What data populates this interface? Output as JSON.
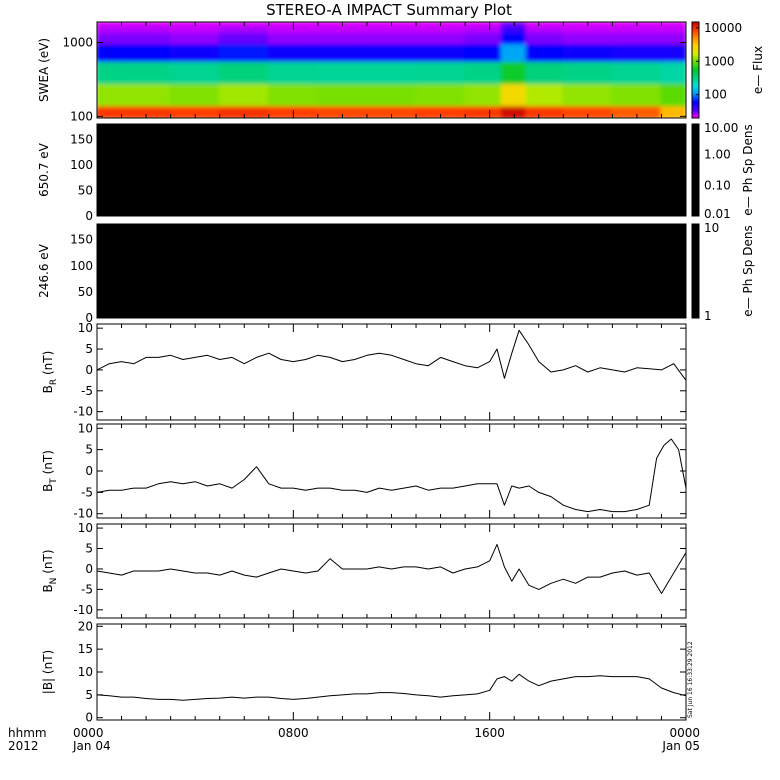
{
  "title": "STEREO-A IMPACT Summary Plot",
  "time_axis": {
    "row1_label": "hhmm",
    "row2_label": "2012",
    "ticks": [
      {
        "hour": 0,
        "top": "0000",
        "bottom": "Jan 04"
      },
      {
        "hour": 8,
        "top": "0800",
        "bottom": ""
      },
      {
        "hour": 16,
        "top": "1600",
        "bottom": ""
      },
      {
        "hour": 24,
        "top": "0000",
        "bottom": "Jan 05"
      }
    ],
    "range_hours": [
      0,
      24
    ]
  },
  "timestamp_label": "Sat Jun 16 16:33:29 2012",
  "colors": {
    "background": "#ffffff",
    "frame": "#000000",
    "trace": "#000000",
    "empty_panel": "#000000",
    "spectrogram_scale": [
      "#ff00ff",
      "#4b00ff",
      "#0000ff",
      "#0096ff",
      "#00dcdc",
      "#00d27d",
      "#00c832",
      "#64dc00",
      "#d2f000",
      "#ffd200",
      "#ff8c00",
      "#ff3c00",
      "#c80000"
    ]
  },
  "chart_data": [
    {
      "type": "heatmap",
      "name": "swea",
      "ylabel": "SWEA (eV)",
      "yscale": "log",
      "ylim": [
        95,
        1900
      ],
      "yticks": [
        100,
        1000
      ],
      "yticklabels": [
        "100",
        "1000"
      ],
      "colorbar": {
        "label": "e— Flux",
        "scale": "log",
        "range": [
          20,
          15000
        ],
        "ticks": [
          100,
          1000,
          10000
        ],
        "ticklabels": [
          "100",
          "1000",
          "10000"
        ]
      },
      "energy_bins": [
        100,
        200,
        400,
        800,
        1200,
        1600,
        1900
      ],
      "time_hours": [
        0,
        2,
        4,
        6,
        8,
        10,
        12,
        14,
        16,
        17,
        18,
        20,
        22,
        24
      ],
      "flux": [
        [
          9000,
          1200,
          300,
          60,
          30,
          25,
          22
        ],
        [
          9000,
          1200,
          300,
          60,
          30,
          25,
          22
        ],
        [
          8500,
          1100,
          280,
          55,
          28,
          24,
          22
        ],
        [
          9500,
          1300,
          320,
          65,
          32,
          26,
          22
        ],
        [
          8500,
          1100,
          280,
          55,
          28,
          24,
          22
        ],
        [
          8000,
          1050,
          270,
          55,
          28,
          24,
          22
        ],
        [
          8000,
          1050,
          270,
          55,
          28,
          24,
          22
        ],
        [
          8500,
          1100,
          280,
          55,
          28,
          24,
          22
        ],
        [
          9000,
          1200,
          300,
          60,
          30,
          25,
          22
        ],
        [
          14000,
          2500,
          600,
          120,
          60,
          40,
          30
        ],
        [
          9000,
          1400,
          320,
          60,
          30,
          25,
          22
        ],
        [
          8000,
          1200,
          300,
          55,
          28,
          24,
          22
        ],
        [
          7000,
          1100,
          280,
          50,
          28,
          24,
          22
        ],
        [
          3500,
          900,
          250,
          50,
          28,
          24,
          22
        ]
      ]
    },
    {
      "type": "heatmap",
      "name": "pad_650",
      "ylabel": "650.7 eV",
      "ylim": [
        0,
        180
      ],
      "yticks": [
        0,
        50,
        100,
        150
      ],
      "yticklabels": [
        "0",
        "50",
        "100",
        "150"
      ],
      "colorbar": {
        "label": "e— Ph Sp Dens",
        "scale": "log",
        "range": [
          0.01,
          10
        ],
        "ticks": [
          0.01,
          0.1,
          1,
          10
        ],
        "ticklabels": [
          "0.01",
          "0.10",
          "1.00",
          "10.00"
        ]
      },
      "values": "no data (panel filled black)"
    },
    {
      "type": "heatmap",
      "name": "pad_246",
      "ylabel": "246.6 eV",
      "ylim": [
        0,
        180
      ],
      "yticks": [
        0,
        50,
        100,
        150
      ],
      "yticklabels": [
        "0",
        "50",
        "100",
        "150"
      ],
      "colorbar": {
        "label": "e— Ph Sp Dens",
        "scale": "log",
        "range": [
          1,
          10
        ],
        "ticks": [
          1,
          10
        ],
        "ticklabels": [
          "1",
          "10"
        ]
      },
      "values": "no data (panel filled black)"
    },
    {
      "type": "line",
      "name": "br",
      "ylabel_main": "B",
      "ylabel_sub": "R",
      "ylabel_unit": " (nT)",
      "ylim": [
        -12,
        11
      ],
      "yticks": [
        -10,
        -5,
        0,
        5,
        10
      ],
      "yticklabels": [
        "-10",
        "-5",
        "0",
        "5",
        "10"
      ],
      "x": [
        0,
        0.5,
        1,
        1.5,
        2,
        2.5,
        3,
        3.5,
        4,
        4.5,
        5,
        5.5,
        6,
        6.5,
        7,
        7.5,
        8,
        8.5,
        9,
        9.5,
        10,
        10.5,
        11,
        11.5,
        12,
        12.5,
        13,
        13.5,
        14,
        14.5,
        15,
        15.5,
        16,
        16.3,
        16.6,
        16.9,
        17.2,
        17.6,
        18,
        18.5,
        19,
        19.5,
        20,
        20.5,
        21,
        21.5,
        22,
        22.5,
        23,
        23.5,
        24
      ],
      "y": [
        0,
        1.5,
        2,
        1.5,
        3,
        3,
        3.5,
        2.5,
        3,
        3.5,
        2.5,
        3,
        1.5,
        3,
        4,
        2.5,
        2,
        2.5,
        3.5,
        3,
        2,
        2.5,
        3.5,
        4,
        3.5,
        2.5,
        1.5,
        1,
        3,
        2,
        1,
        0.5,
        2,
        5,
        -2,
        4,
        9.5,
        6,
        2,
        -0.5,
        0,
        1,
        -0.5,
        0.5,
        0,
        -0.5,
        0.5,
        0.3,
        0,
        1.5,
        -2.5
      ]
    },
    {
      "type": "line",
      "name": "bt",
      "ylabel_main": "B",
      "ylabel_sub": "T",
      "ylabel_unit": " (nT)",
      "ylim": [
        -11,
        11
      ],
      "yticks": [
        -10,
        -5,
        0,
        5,
        10
      ],
      "yticklabels": [
        "-10",
        "-5",
        "0",
        "5",
        "10"
      ],
      "x": [
        0,
        0.5,
        1,
        1.5,
        2,
        2.5,
        3,
        3.5,
        4,
        4.5,
        5,
        5.5,
        6,
        6.5,
        7,
        7.5,
        8,
        8.5,
        9,
        9.5,
        10,
        10.5,
        11,
        11.5,
        12,
        12.5,
        13,
        13.5,
        14,
        14.5,
        15,
        15.5,
        16,
        16.3,
        16.6,
        16.9,
        17.2,
        17.6,
        18,
        18.5,
        19,
        19.5,
        20,
        20.5,
        21,
        21.5,
        22,
        22.5,
        22.8,
        23.1,
        23.4,
        23.7,
        24
      ],
      "y": [
        -5,
        -4.5,
        -4.5,
        -4,
        -4,
        -3,
        -2.5,
        -3,
        -2.5,
        -3.5,
        -3,
        -4,
        -2,
        1,
        -3,
        -4,
        -4,
        -4.5,
        -4,
        -4,
        -4.5,
        -4.5,
        -5,
        -4,
        -4.5,
        -4,
        -3.5,
        -4.5,
        -4,
        -4,
        -3.5,
        -3,
        -3,
        -3,
        -8,
        -3.5,
        -4,
        -3.5,
        -5,
        -6,
        -8,
        -9,
        -9.5,
        -9,
        -9.5,
        -9.5,
        -9,
        -8,
        3,
        6,
        7.5,
        5,
        -4
      ]
    },
    {
      "type": "line",
      "name": "bn",
      "ylabel_main": "B",
      "ylabel_sub": "N",
      "ylabel_unit": " (nT)",
      "ylim": [
        -12,
        11
      ],
      "yticks": [
        -10,
        -5,
        0,
        5,
        10
      ],
      "yticklabels": [
        "-10",
        "-5",
        "0",
        "5",
        "10"
      ],
      "x": [
        0,
        0.5,
        1,
        1.5,
        2,
        2.5,
        3,
        3.5,
        4,
        4.5,
        5,
        5.5,
        6,
        6.5,
        7,
        7.5,
        8,
        8.5,
        9,
        9.5,
        10,
        10.5,
        11,
        11.5,
        12,
        12.5,
        13,
        13.5,
        14,
        14.5,
        15,
        15.5,
        16,
        16.3,
        16.6,
        16.9,
        17.2,
        17.6,
        18,
        18.5,
        19,
        19.5,
        20,
        20.5,
        21,
        21.5,
        22,
        22.5,
        23,
        23.5,
        24
      ],
      "y": [
        -0.5,
        -1,
        -1.5,
        -0.5,
        -0.5,
        -0.5,
        0,
        -0.5,
        -1,
        -1,
        -1.5,
        -0.5,
        -1.5,
        -2,
        -1,
        0,
        -0.5,
        -1,
        -0.5,
        2.5,
        0,
        0,
        0,
        0.5,
        0,
        0.5,
        0.5,
        0,
        0.5,
        -1,
        0,
        0.5,
        2,
        6,
        0.5,
        -3,
        0,
        -4,
        -5,
        -3.5,
        -2.5,
        -3.5,
        -2,
        -2,
        -1,
        -0.5,
        -1.5,
        -1,
        -6,
        -1,
        4
      ]
    },
    {
      "type": "line",
      "name": "bmag",
      "ylabel_main": "|B| (nT)",
      "ylim": [
        -0.5,
        20.5
      ],
      "yticks": [
        0,
        5,
        10,
        15,
        20
      ],
      "yticklabels": [
        "0",
        "5",
        "10",
        "15",
        "20"
      ],
      "x": [
        0,
        0.5,
        1,
        1.5,
        2,
        2.5,
        3,
        3.5,
        4,
        4.5,
        5,
        5.5,
        6,
        6.5,
        7,
        7.5,
        8,
        8.5,
        9,
        9.5,
        10,
        10.5,
        11,
        11.5,
        12,
        12.5,
        13,
        13.5,
        14,
        14.5,
        15,
        15.5,
        16,
        16.3,
        16.6,
        16.9,
        17.2,
        17.6,
        18,
        18.5,
        19,
        19.5,
        20,
        20.5,
        21,
        21.5,
        22,
        22.5,
        23,
        23.5,
        24
      ],
      "y": [
        5,
        4.8,
        4.5,
        4.5,
        4.2,
        4,
        4,
        3.8,
        4,
        4.2,
        4.3,
        4.5,
        4.3,
        4.5,
        4.5,
        4.2,
        4,
        4.2,
        4.5,
        4.8,
        5,
        5.2,
        5.2,
        5.5,
        5.5,
        5.3,
        5,
        4.8,
        4.5,
        4.8,
        5,
        5.2,
        6,
        8.5,
        9,
        8,
        9.5,
        8,
        7,
        8,
        8.5,
        9,
        9,
        9.2,
        9,
        9,
        9,
        8.5,
        6.5,
        5.5,
        4.8
      ]
    }
  ]
}
